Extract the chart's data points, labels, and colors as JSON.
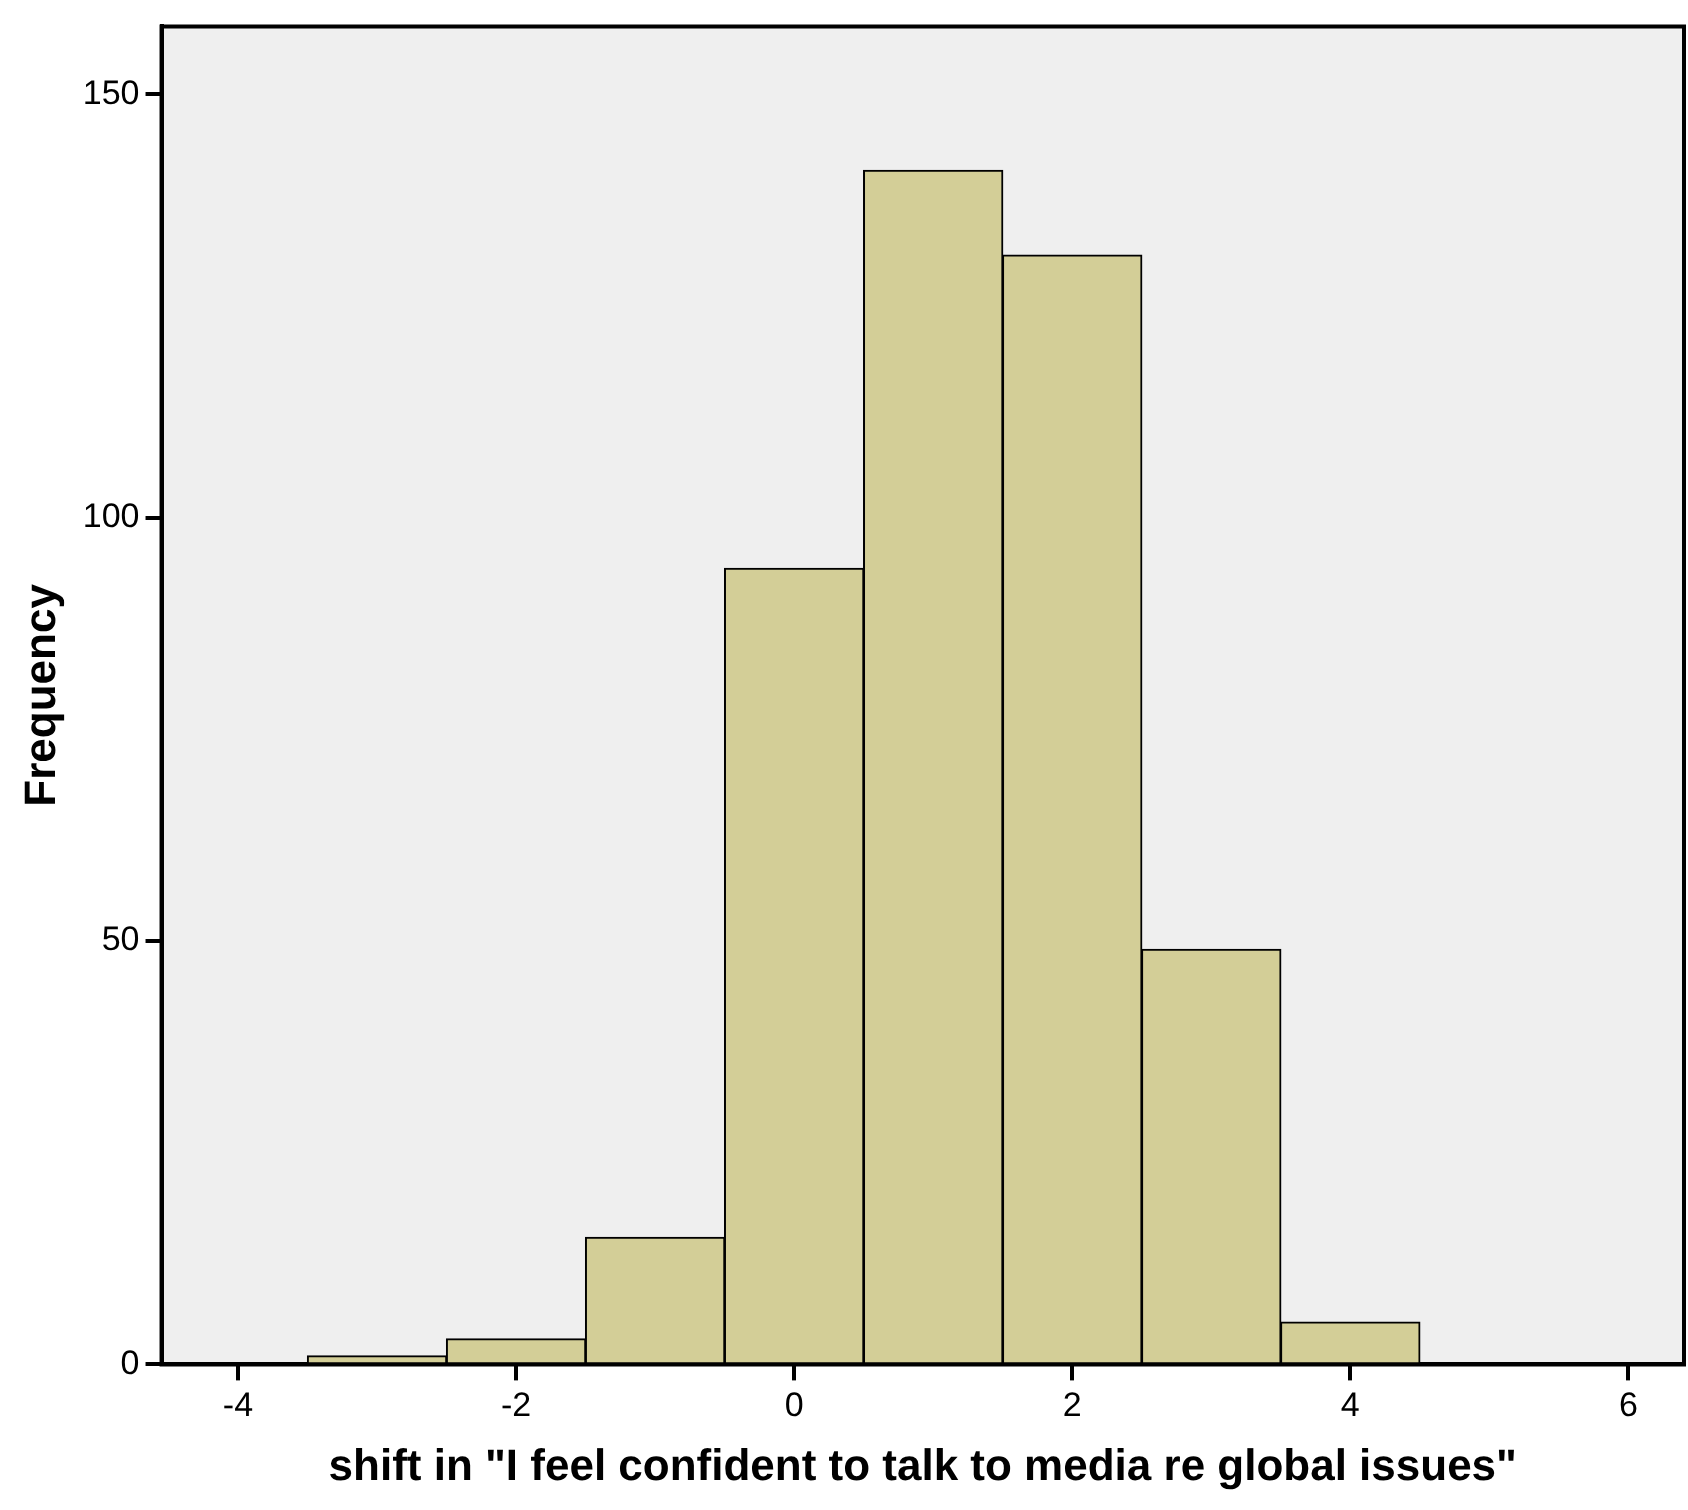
{
  "chart_data": {
    "type": "histogram",
    "xlabel": "shift in \"I feel confident to talk to media re global issues\"",
    "ylabel": "Frequency",
    "bins": [
      -3.5,
      -2.5,
      -1.5,
      -0.5,
      0.5,
      1.5,
      2.5,
      3.5,
      4.5
    ],
    "values": [
      1,
      3,
      15,
      94,
      141,
      131,
      49,
      5
    ],
    "color": "#d3ce97",
    "xlim": [
      -4.55,
      6.4
    ],
    "xticks": [
      -4,
      -2,
      0,
      2,
      4,
      6
    ],
    "ylim": [
      0,
      158
    ],
    "yticks": [
      0,
      50,
      100,
      150
    ],
    "grid": false,
    "legend": false
  }
}
